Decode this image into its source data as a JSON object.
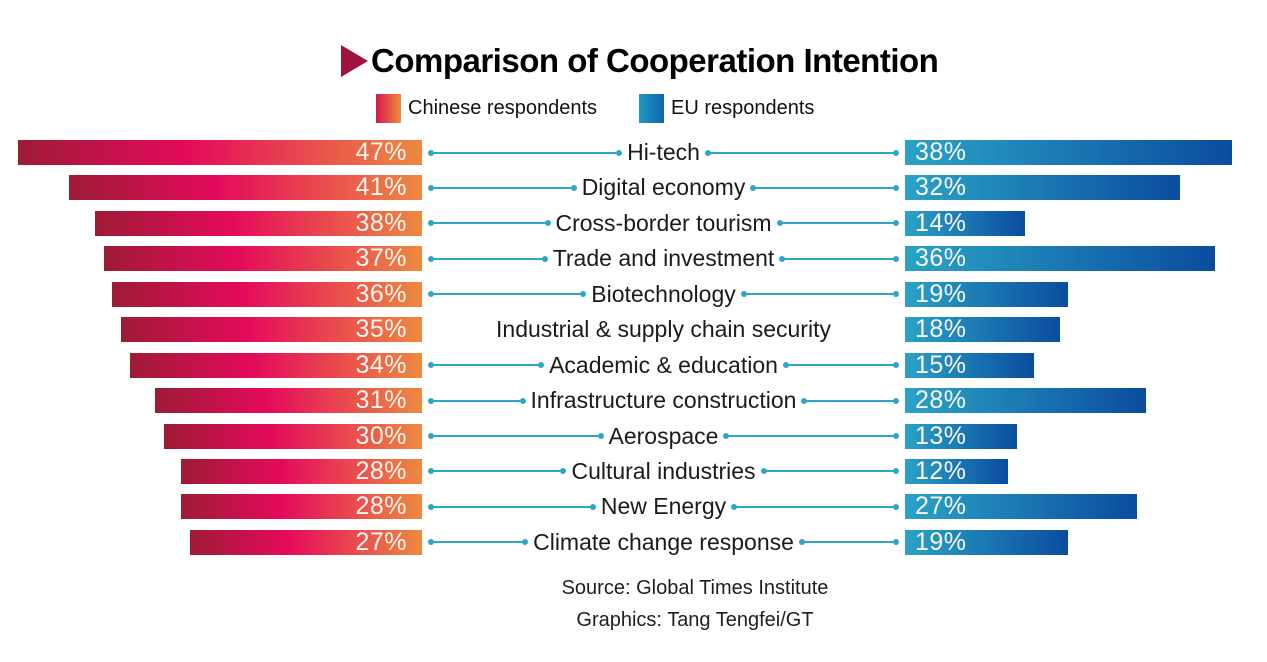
{
  "header": {
    "title": "Comparison of Cooperation Intention",
    "triangle_icon_color": "#A0123E"
  },
  "legend": {
    "items": [
      {
        "label": "Chinese respondents",
        "swatch_gradient": [
          "#D8174E",
          "#EE8B3D"
        ]
      },
      {
        "label": "EU respondents",
        "swatch_gradient": [
          "#1E9AC2",
          "#0E64AC"
        ]
      }
    ]
  },
  "chart_data": {
    "type": "bar",
    "variant": "diverging-horizontal-butterfly",
    "title": "Comparison of Cooperation Intention",
    "unit": "%",
    "categories": [
      "Hi-tech",
      "Digital economy",
      "Cross-border tourism",
      "Trade and investment",
      "Biotechnology",
      "Industrial & supply chain security",
      "Academic & education",
      "Infrastructure construction",
      "Aerospace",
      "Cultural industries",
      "New Energy",
      "Climate change response"
    ],
    "series": [
      {
        "name": "Chinese respondents",
        "side": "left",
        "values": [
          47,
          41,
          38,
          37,
          36,
          35,
          34,
          31,
          30,
          28,
          28,
          27
        ],
        "bar_gradient": [
          "#9E1B36",
          "#E50A5C",
          "#ED8A40"
        ]
      },
      {
        "name": "EU respondents",
        "side": "right",
        "values": [
          38,
          32,
          14,
          36,
          19,
          18,
          15,
          28,
          13,
          12,
          27,
          19
        ],
        "bar_gradient": [
          "#2AA3C6",
          "#0B4C9F"
        ]
      }
    ],
    "value_labels": "inside bar ends, white, with % sign",
    "axes": "none",
    "grid": false,
    "legend_position": "top-center",
    "connector_color": "#2FA6C9",
    "rows_without_connectors": [
      "Industrial & supply chain security"
    ],
    "xlim_left": [
      0,
      47
    ],
    "xlim_right": [
      0,
      38
    ]
  },
  "footer": {
    "source": "Source: Global Times Institute",
    "credit": "Graphics: Tang Tengfei/GT"
  }
}
